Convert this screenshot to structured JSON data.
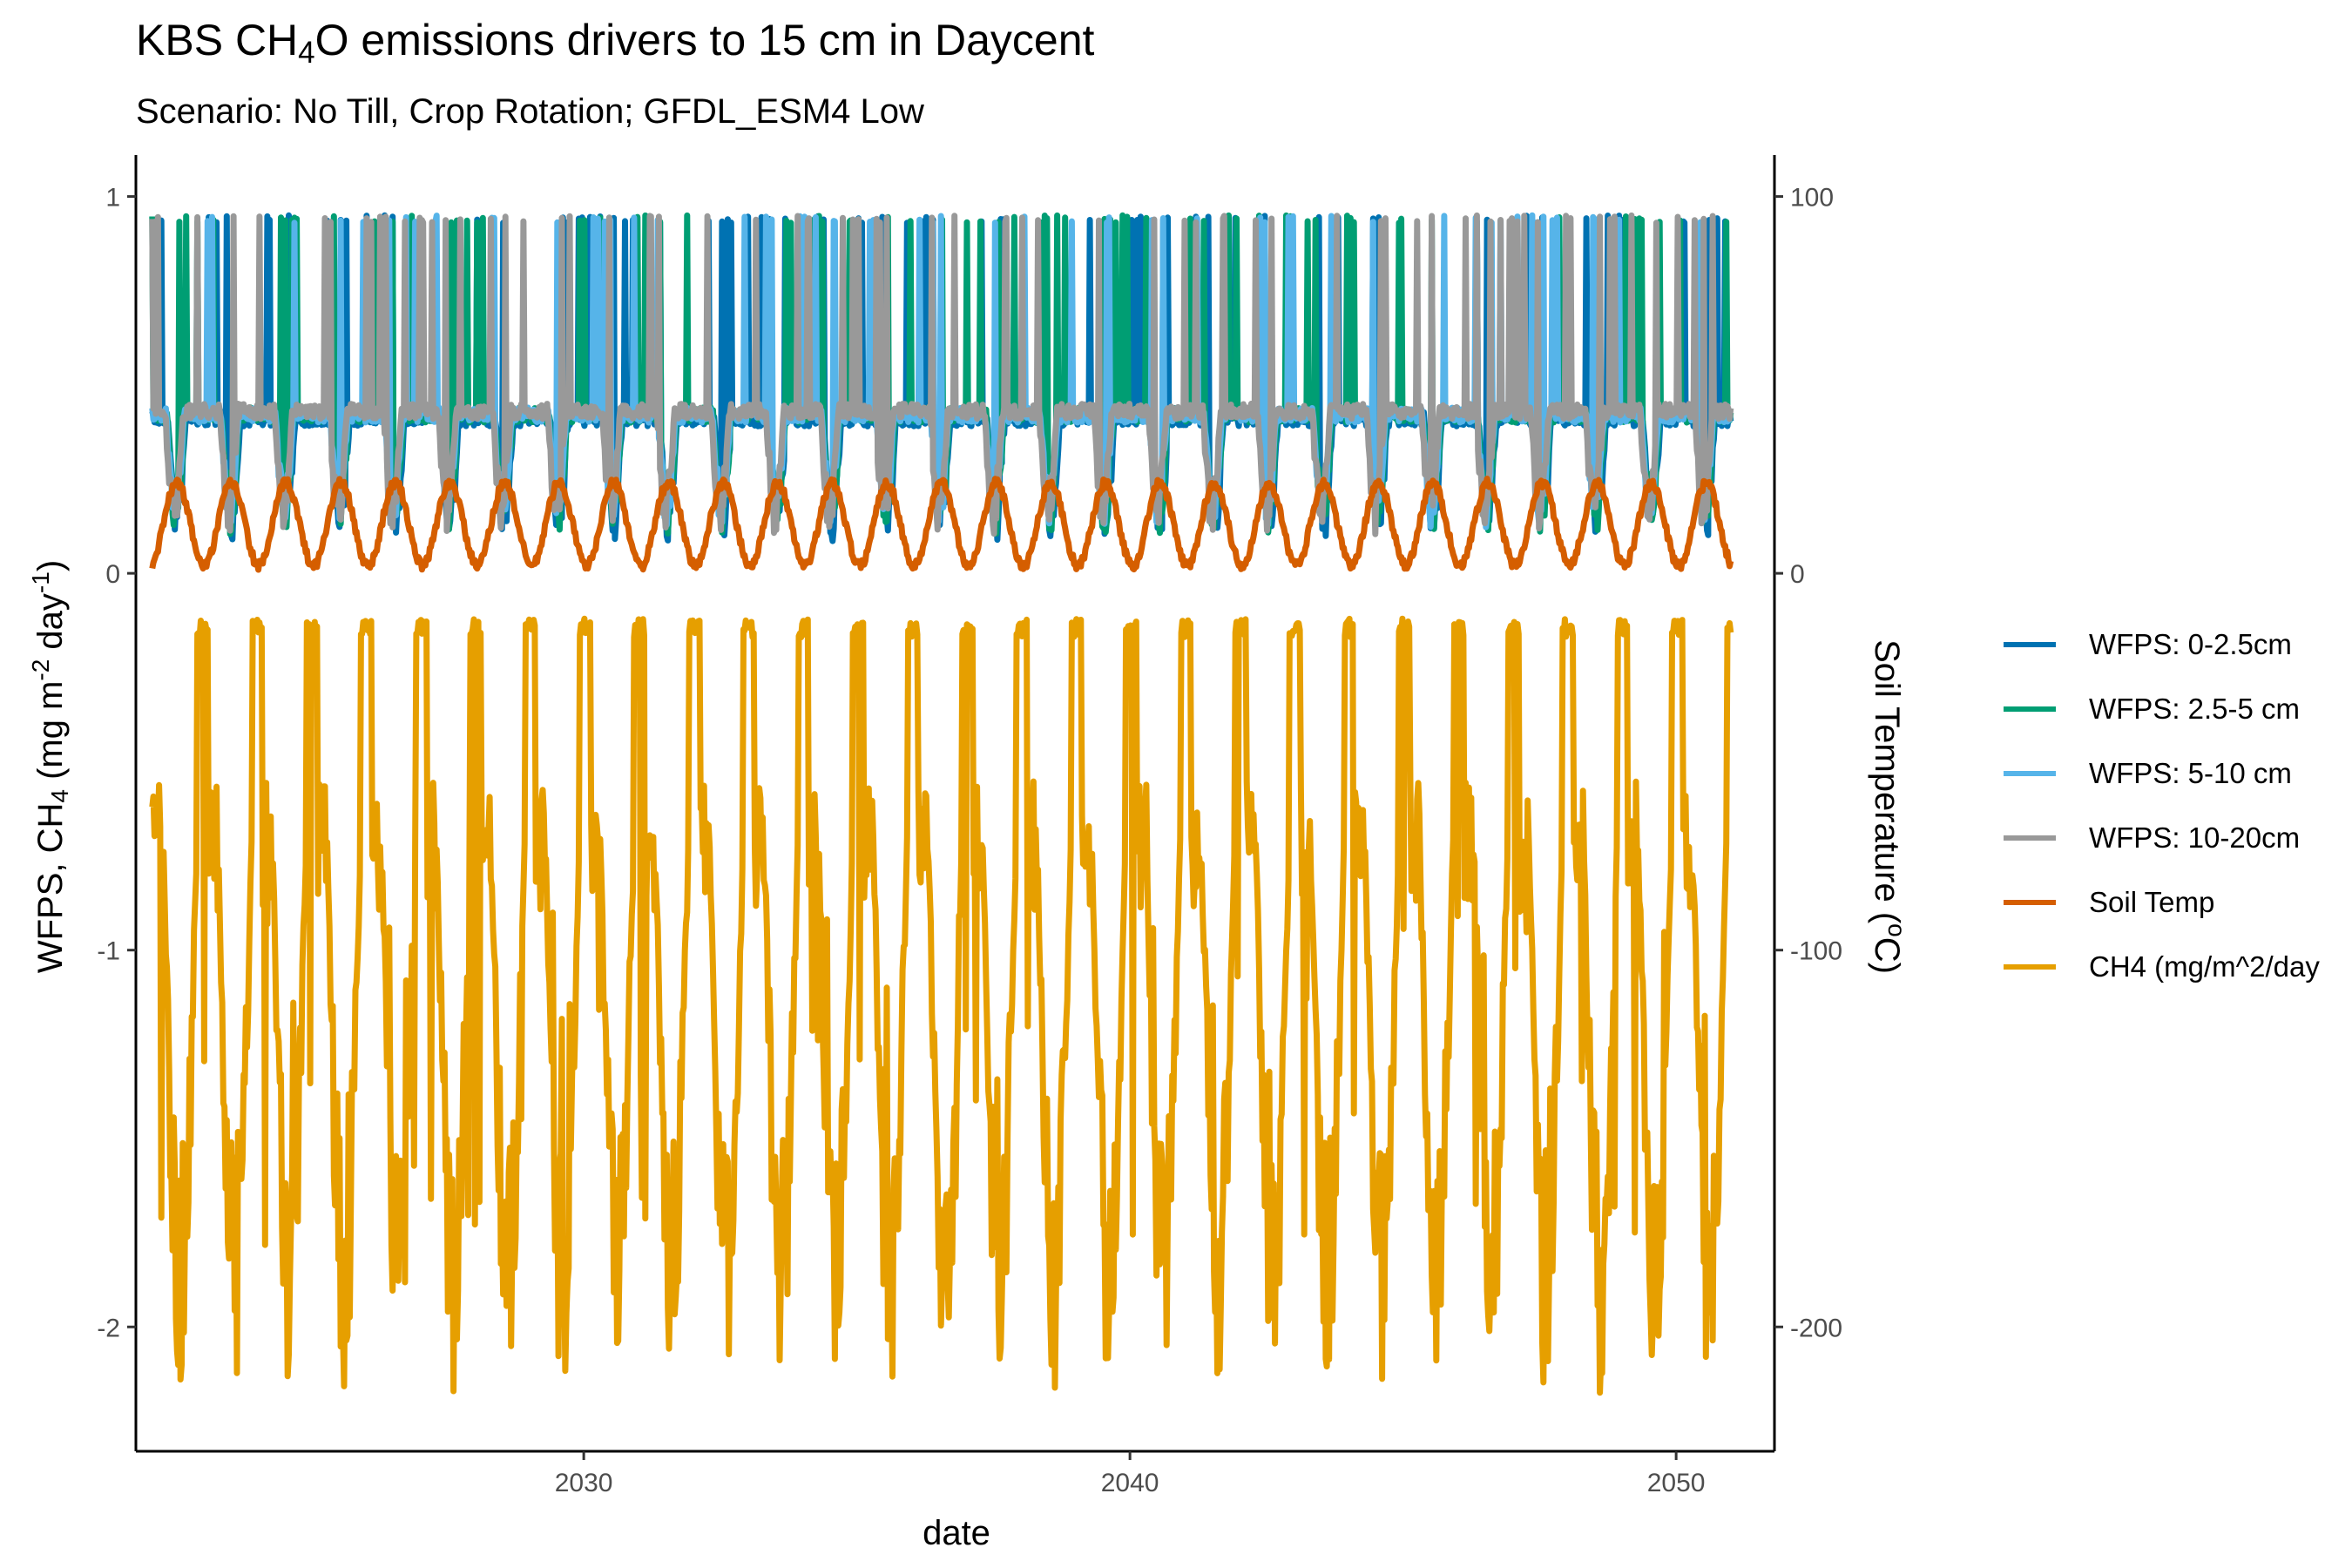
{
  "chart_data": {
    "type": "line",
    "title": {
      "pre": "KBS CH",
      "sub": "4",
      "post": "O emissions drivers to 15 cm in Daycent"
    },
    "subtitle": "Scenario: No Till, Crop Rotation; GFDL_ESM4 Low",
    "xlabel": "date",
    "ylabel_left": {
      "pre": "WFPS, CH",
      "sub": "4",
      "mid1": "  (mg m",
      "sup1": "-2",
      "mid2": " day",
      "sup2": "-1",
      "post": ")"
    },
    "ylabel_right": {
      "pre": "Soil Temperature (",
      "sup": "o",
      "post": "C)"
    },
    "x_ticks": [
      2030,
      2040,
      2050
    ],
    "xlim": [
      2021.8,
      2051.8
    ],
    "y_left_ticks": [
      {
        "value": 1,
        "label": "1"
      },
      {
        "value": 0,
        "label": "0"
      },
      {
        "value": -1,
        "label": "-1"
      },
      {
        "value": -2,
        "label": "-2"
      }
    ],
    "y_right_ticks": [
      {
        "value": 100,
        "label": "100"
      },
      {
        "value": 0,
        "label": "0"
      },
      {
        "value": -100,
        "label": "-100"
      },
      {
        "value": -200,
        "label": "-200"
      }
    ],
    "ylim_left": [
      -2.33,
      1.11
    ],
    "ylim_right": [
      -233,
      111
    ],
    "x_range_data": [
      2022.1,
      2051.0
    ],
    "grid": false,
    "legend_position": "right",
    "series": [
      {
        "name": "WFPS: 0-2.5cm",
        "color": "#0072B2",
        "axis": "left",
        "pattern": "wfps",
        "base": 0.43,
        "min": 0.08,
        "peak": 0.95,
        "phase": 0.0
      },
      {
        "name": "WFPS: 2.5-5 cm",
        "color": "#009E73",
        "axis": "left",
        "pattern": "wfps",
        "base": 0.44,
        "min": 0.1,
        "peak": 0.95,
        "phase": 0.17
      },
      {
        "name": "WFPS: 5-10 cm",
        "color": "#56B4E9",
        "axis": "left",
        "pattern": "wfps",
        "base": 0.44,
        "min": 0.12,
        "peak": 0.95,
        "phase": 0.33
      },
      {
        "name": "WFPS: 10-20cm",
        "color": "#999999",
        "axis": "left",
        "pattern": "wfps",
        "base": 0.45,
        "min": 0.1,
        "peak": 0.95,
        "phase": 0.5
      },
      {
        "name": "Soil Temp",
        "color": "#D55E00",
        "axis": "right",
        "pattern": "seasonal",
        "min_c": 2,
        "max_c": 24
      },
      {
        "name": "CH4 (mg/m^2/day",
        "color": "#E69F00",
        "axis": "left",
        "pattern": "ch4",
        "max": -0.12,
        "min": -2.18,
        "start": -0.62
      }
    ]
  }
}
